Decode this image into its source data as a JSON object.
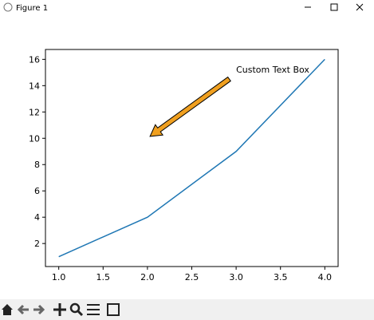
{
  "window": {
    "title": "Figure 1"
  },
  "chart_data": {
    "type": "line",
    "x": [
      1,
      2,
      3,
      4
    ],
    "values": [
      1,
      4,
      9,
      16
    ],
    "color": "#1f77b4",
    "xlim": [
      0.85,
      4.15
    ],
    "ylim": [
      0.25,
      16.75
    ],
    "xticks": [
      {
        "value": 1,
        "label": "1.0"
      },
      {
        "value": 1.5,
        "label": "1.5"
      },
      {
        "value": 2,
        "label": "2.0"
      },
      {
        "value": 2.5,
        "label": "2.5"
      },
      {
        "value": 3,
        "label": "3.0"
      },
      {
        "value": 3.5,
        "label": "3.5"
      },
      {
        "value": 4,
        "label": "4.0"
      }
    ],
    "yticks": [
      2,
      4,
      6,
      8,
      10,
      12,
      14,
      16
    ],
    "annotations": [
      {
        "text": "Custom Text Box",
        "x": 3,
        "y": 15,
        "arrow_x": 2,
        "arrow_y": 10,
        "color": "#f0a020"
      }
    ]
  }
}
